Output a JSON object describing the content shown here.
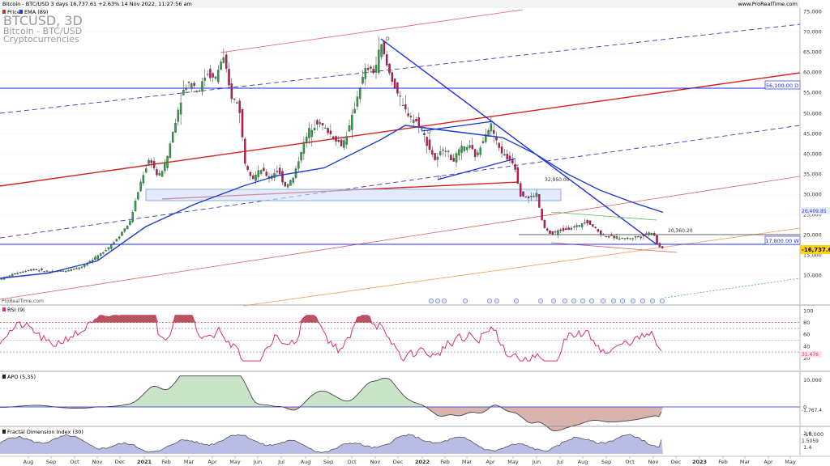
{
  "header": {
    "info": "Bitcoin - BTC/USD 3 days 16,737.61 +2.63% 14 Nov 2022, 11:27:56 am",
    "source": "www.ProRealTime.com",
    "legend": [
      {
        "label": "Price",
        "color": "#c0392b"
      },
      {
        "label": "EMA (89)",
        "color": "#1e3fcc"
      }
    ]
  },
  "watermark": {
    "symbol": "BTCUSD, 3D",
    "name": "Bitcoin - BTC/USD",
    "category": "Cryptocurrencies"
  },
  "footer_source": "ProRealTime.com",
  "chart_data": [
    {
      "type": "candlestick",
      "panel": "price",
      "ylim": [
        5000,
        75000
      ],
      "y_ticks": [
        "75,000",
        "70,000",
        "65,000",
        "60,000",
        "55,000",
        "50,000",
        "45,000",
        "40,000",
        "35,000",
        "30,000",
        "25,000",
        "20,000",
        "15,000",
        "10,000"
      ],
      "x_ticks": [
        "Aug",
        "Sep",
        "Oct",
        "Nov",
        "Dec",
        "2021",
        "Feb",
        "Mar",
        "Apr",
        "May",
        "Jun",
        "Jul",
        "Aug",
        "Sep",
        "Oct",
        "Nov",
        "Dec",
        "2022",
        "Feb",
        "Mar",
        "Apr",
        "May",
        "Jun",
        "Jul",
        "Aug",
        "Sep",
        "Oct",
        "Nov",
        "Dec",
        "2023",
        "Feb",
        "Mar",
        "Apr",
        "May"
      ],
      "close_path": [
        [
          0,
          9000
        ],
        [
          20,
          10500
        ],
        [
          40,
          11500
        ],
        [
          60,
          10800
        ],
        [
          80,
          11000
        ],
        [
          100,
          12000
        ],
        [
          120,
          14500
        ],
        [
          140,
          18000
        ],
        [
          160,
          23000
        ],
        [
          175,
          34000
        ],
        [
          185,
          39000
        ],
        [
          195,
          34000
        ],
        [
          205,
          38000
        ],
        [
          215,
          47000
        ],
        [
          225,
          55000
        ],
        [
          235,
          58000
        ],
        [
          245,
          55000
        ],
        [
          255,
          60000
        ],
        [
          265,
          58000
        ],
        [
          275,
          64000
        ],
        [
          285,
          54000
        ],
        [
          295,
          52000
        ],
        [
          302,
          38000
        ],
        [
          312,
          34000
        ],
        [
          322,
          36000
        ],
        [
          332,
          34000
        ],
        [
          342,
          36000
        ],
        [
          352,
          32000
        ],
        [
          362,
          34000
        ],
        [
          372,
          41000
        ],
        [
          382,
          46000
        ],
        [
          392,
          48000
        ],
        [
          402,
          46000
        ],
        [
          412,
          44000
        ],
        [
          422,
          42000
        ],
        [
          432,
          47000
        ],
        [
          442,
          55000
        ],
        [
          452,
          61000
        ],
        [
          462,
          60000
        ],
        [
          470,
          67000
        ],
        [
          478,
          61000
        ],
        [
          488,
          56000
        ],
        [
          498,
          51000
        ],
        [
          508,
          49000
        ],
        [
          518,
          47000
        ],
        [
          528,
          42000
        ],
        [
          538,
          38000
        ],
        [
          548,
          42000
        ],
        [
          558,
          38000
        ],
        [
          568,
          41000
        ],
        [
          578,
          42000
        ],
        [
          588,
          39000
        ],
        [
          598,
          45000
        ],
        [
          606,
          47000
        ],
        [
          614,
          42000
        ],
        [
          624,
          39000
        ],
        [
          634,
          38000
        ],
        [
          642,
          30000
        ],
        [
          652,
          29000
        ],
        [
          662,
          30000
        ],
        [
          670,
          22000
        ],
        [
          680,
          20000
        ],
        [
          690,
          21000
        ],
        [
          700,
          21500
        ],
        [
          712,
          22000
        ],
        [
          722,
          23500
        ],
        [
          732,
          22000
        ],
        [
          742,
          20000
        ],
        [
          752,
          19500
        ],
        [
          762,
          19200
        ],
        [
          772,
          19000
        ],
        [
          782,
          19300
        ],
        [
          792,
          19800
        ],
        [
          800,
          20400
        ],
        [
          806,
          20600
        ],
        [
          812,
          17000
        ],
        [
          818,
          16737
        ]
      ],
      "ema_path": [
        [
          0,
          9200
        ],
        [
          60,
          10500
        ],
        [
          120,
          13500
        ],
        [
          180,
          22000
        ],
        [
          240,
          27500
        ],
        [
          300,
          32000
        ],
        [
          340,
          34500
        ],
        [
          400,
          36500
        ],
        [
          440,
          40500
        ],
        [
          470,
          43500
        ],
        [
          500,
          47000
        ],
        [
          520,
          46500
        ],
        [
          580,
          45000
        ],
        [
          620,
          44000
        ],
        [
          660,
          40000
        ],
        [
          700,
          35000
        ],
        [
          740,
          31000
        ],
        [
          780,
          28000
        ],
        [
          818,
          25500
        ]
      ],
      "horizontal_levels": [
        {
          "label": "56,100.00 D",
          "value": 56100
        },
        {
          "label": "17,800.00 W",
          "value": 17800
        },
        {
          "label": "20,360.20",
          "value": 20360
        }
      ],
      "zone": {
        "from": 28500,
        "to": 31500
      },
      "annotations": [
        "32,950.00",
        "D",
        "D",
        "D"
      ],
      "right_markers": [
        {
          "label": "26,409.85",
          "value": 26409.85,
          "color": "#1e3fcc"
        },
        {
          "label": "-16,737.61",
          "value": 16737.61,
          "color": "#ffd400"
        }
      ]
    },
    {
      "type": "line",
      "panel": "rsi",
      "title": "RSI (9)",
      "ylim": [
        0,
        100
      ],
      "y_ticks": [
        "100",
        "80",
        "60",
        "40",
        "20"
      ],
      "levels": [
        80,
        70,
        50,
        30
      ],
      "last_value_label": "31.476",
      "last_value": 31.476
    },
    {
      "type": "area",
      "panel": "apo",
      "title": "APO (5,35)",
      "ylim": [
        -12000,
        12000
      ],
      "y_ticks": [
        "10,000",
        "0",
        "-10,000"
      ],
      "last_value_label": "-1,767.4",
      "last_value": -1767.4
    },
    {
      "type": "area",
      "panel": "fdi",
      "title": "Fractal Dimension Index (30)",
      "ylim": [
        1.3,
        1.65
      ],
      "y_ticks": [
        "1.6",
        "1.4"
      ],
      "last_value_label": "1.5059",
      "last_value": 1.5059
    }
  ]
}
